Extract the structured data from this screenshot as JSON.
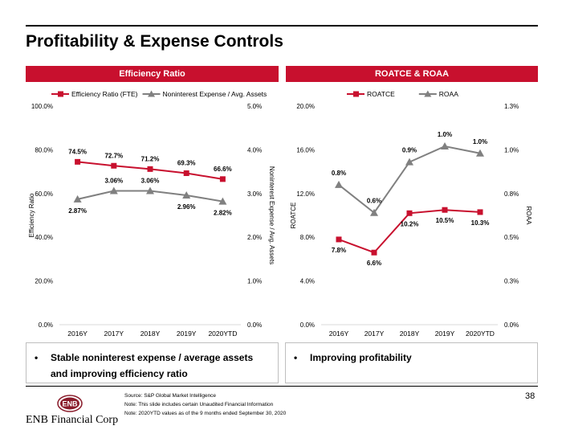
{
  "page": {
    "title": "Profitability & Expense Controls",
    "page_number": "38"
  },
  "left_panel": {
    "header": "Efficiency Ratio",
    "bullet": "Stable noninterest expense / average assets and improving efficiency ratio",
    "bullet_line1": "Stable noninterest expense / average assets",
    "bullet_line2": "and improving efficiency ratio"
  },
  "right_panel": {
    "header": "ROATCE & ROAA",
    "bullet": "Improving profitability"
  },
  "footer": {
    "source": "Source: S&P Global Market Intelligence",
    "note1": "Note:  This slide includes certain Unaudited Financial Information",
    "note2": "Note:     2020YTD values as of the 9 months ended September 30, 2020",
    "logo_text": "ENB Financial Corp",
    "logo_mark": "ENB"
  },
  "colors": {
    "accent": "#c8102e",
    "series_red": "#c8102e",
    "series_gray": "#808080"
  },
  "chart_data": [
    {
      "type": "line",
      "categories": [
        "2016Y",
        "2017Y",
        "2018Y",
        "2019Y",
        "2020YTD"
      ],
      "ylabel": "Efficiency Ratio",
      "y2label": "Noninterest Expense / Avg. Assets",
      "ylim": [
        0,
        100
      ],
      "y2lim": [
        0,
        5
      ],
      "y_ticks": [
        "0.0%",
        "20.0%",
        "40.0%",
        "60.0%",
        "80.0%",
        "100.0%"
      ],
      "y2_ticks": [
        "0.0%",
        "1.0%",
        "2.0%",
        "3.0%",
        "4.0%",
        "5.0%"
      ],
      "legend": "top",
      "grid": false,
      "series": [
        {
          "name": "Efficiency Ratio (FTE)",
          "axis": "left",
          "marker": "square",
          "color": "#c8102e",
          "values": [
            74.5,
            72.7,
            71.2,
            69.3,
            66.6
          ],
          "labels": [
            "74.5%",
            "72.7%",
            "71.2%",
            "69.3%",
            "66.6%"
          ]
        },
        {
          "name": "Noninterest Expense / Avg. Assets",
          "axis": "right",
          "marker": "triangle",
          "color": "#808080",
          "values": [
            2.87,
            3.06,
            3.06,
            2.96,
            2.82
          ],
          "labels": [
            "2.87%",
            "3.06%",
            "3.06%",
            "2.96%",
            "2.82%"
          ]
        }
      ]
    },
    {
      "type": "line",
      "categories": [
        "2016Y",
        "2017Y",
        "2018Y",
        "2019Y",
        "2020YTD"
      ],
      "ylabel": "ROATCE",
      "y2label": "ROAA",
      "ylim": [
        0,
        20
      ],
      "y2lim": [
        0,
        1.25
      ],
      "y_ticks": [
        "0.0%",
        "4.0%",
        "8.0%",
        "12.0%",
        "16.0%",
        "20.0%"
      ],
      "y2_ticks": [
        "0.0%",
        "0.3%",
        "0.5%",
        "0.8%",
        "1.0%",
        "1.3%"
      ],
      "legend": "top",
      "grid": false,
      "series": [
        {
          "name": "ROATCE",
          "axis": "left",
          "marker": "square",
          "color": "#c8102e",
          "values": [
            7.8,
            6.6,
            10.2,
            10.5,
            10.3
          ],
          "labels": [
            "7.8%",
            "6.6%",
            "10.2%",
            "10.5%",
            "10.3%"
          ]
        },
        {
          "name": "ROAA",
          "axis": "right",
          "marker": "triangle",
          "color": "#808080",
          "values": [
            0.8,
            0.64,
            0.93,
            1.02,
            0.98
          ],
          "labels": [
            "0.8%",
            "0.6%",
            "0.9%",
            "1.0%",
            "1.0%"
          ]
        }
      ]
    }
  ]
}
